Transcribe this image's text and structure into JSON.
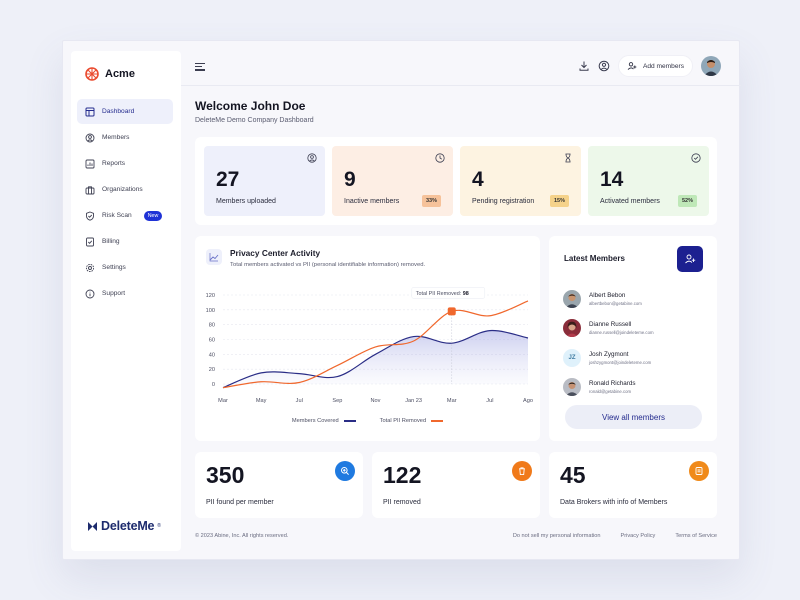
{
  "sidebar": {
    "brand": "Acme",
    "items": [
      {
        "label": "Dashboard"
      },
      {
        "label": "Members"
      },
      {
        "label": "Reports"
      },
      {
        "label": "Organizations"
      },
      {
        "label": "Risk Scan",
        "badge": "New"
      },
      {
        "label": "Billing"
      },
      {
        "label": "Settings"
      },
      {
        "label": "Support"
      }
    ],
    "footer_logo": "DeleteMe",
    "footer_logo_mark": "®"
  },
  "topbar": {
    "add_members_label": "Add members"
  },
  "header": {
    "title": "Welcome John Doe",
    "subtitle": "DeleteMe Demo Company Dashboard"
  },
  "stats": [
    {
      "value": "27",
      "label": "Members uploaded",
      "color": "#eef0fb"
    },
    {
      "value": "9",
      "label": "Inactive members",
      "percent": "33%",
      "color": "#fdeee4",
      "badge_color": "#f6c29a"
    },
    {
      "value": "4",
      "label": "Pending registration",
      "percent": "15%",
      "color": "#fdf3e1",
      "badge_color": "#f5d28a"
    },
    {
      "value": "14",
      "label": "Activated members",
      "percent": "52%",
      "color": "#edf8ea",
      "badge_color": "#bfe8b8"
    }
  ],
  "activity": {
    "title": "Privacy Center Activity",
    "subtitle": "Total members activated vs PII (personal identifiable information) removed.",
    "tooltip_label": "Total PII Removed:",
    "tooltip_value": "98"
  },
  "chart_data": {
    "type": "line",
    "categories": [
      "Mar",
      "May",
      "Jul",
      "Sep",
      "Nov",
      "Jan 23",
      "Mar",
      "Jul",
      "Ago"
    ],
    "yticks": [
      0,
      20,
      40,
      60,
      80,
      100,
      120
    ],
    "ylim": [
      0,
      120
    ],
    "series": [
      {
        "name": "Members Covered",
        "color": "#2a2d86",
        "values": [
          -5,
          15,
          14,
          10,
          40,
          64,
          55,
          72,
          62
        ]
      },
      {
        "name": "Total PII Removed",
        "color": "#f0682d",
        "values": [
          -5,
          3,
          2,
          25,
          50,
          58,
          98,
          92,
          112
        ]
      }
    ],
    "legend": "bottom",
    "grid": true
  },
  "latest_members": {
    "title": "Latest Members",
    "items": [
      {
        "name": "Albert Bebon",
        "email": "albertbebon@getabine.com"
      },
      {
        "name": "Dianne Russell",
        "email": "dianne.russell@joindeleteme.com"
      },
      {
        "name": "Josh Zygmont",
        "email": "joshzygmont@joindeleteme.com",
        "initials": "JZ"
      },
      {
        "name": "Ronald Richards",
        "email": "ronald@getabine.com"
      }
    ],
    "view_all_label": "View all members"
  },
  "kpis": [
    {
      "value": "350",
      "label": "PII found per member",
      "color": "#1f7ae0"
    },
    {
      "value": "122",
      "label": "PII removed",
      "color": "#f07a1a"
    },
    {
      "value": "45",
      "label": "Data Brokers with info of Members",
      "color": "#f08a1a"
    }
  ],
  "footer": {
    "copyright": "© 2023 Abine, Inc. All rights reserved.",
    "links": [
      "Do not sell my personal information",
      "Privacy Policy",
      "Terms of Service"
    ]
  }
}
